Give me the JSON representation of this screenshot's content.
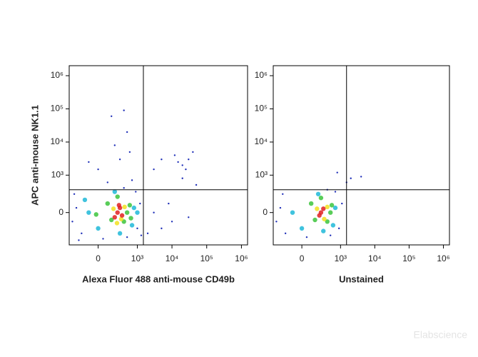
{
  "chart_data": [
    {
      "type": "scatter",
      "scale": "biexponential",
      "xlabel": "Alexa Fluor 488 anti-mouse CD49b",
      "ylabel": "APC anti-mouse NK1.1",
      "xlim": [
        -500,
        1500000
      ],
      "ylim": [
        -700,
        2000000
      ],
      "xticks": [
        0,
        {
          "value": 1000,
          "label": "10³"
        },
        {
          "value": 10000,
          "label": "10⁴"
        },
        {
          "value": 100000,
          "label": "10⁵"
        },
        {
          "value": 1000000,
          "label": "10⁶"
        }
      ],
      "yticks": [
        0,
        {
          "value": 1000,
          "label": "10³"
        },
        {
          "value": 10000,
          "label": "10⁴"
        },
        {
          "value": 100000,
          "label": "10⁵"
        },
        {
          "value": 1000000,
          "label": "10⁶"
        }
      ],
      "gate_x": 1500,
      "gate_y": 350,
      "series": [
        {
          "color": "#1f2fb8",
          "x": [
            -300,
            -200,
            1000,
            1200,
            -400,
            50,
            500,
            400,
            100,
            0,
            300,
            200,
            500,
            400,
            150,
            600,
            -100,
            20000,
            30000,
            25000,
            15000,
            40000,
            20000,
            10000,
            5000,
            3000,
            8000,
            2000,
            30000,
            50000,
            3000,
            5000,
            12000,
            -350,
            900,
            1300,
            700,
            -250
          ],
          "values": [
            50,
            -300,
            -200,
            100,
            -100,
            -450,
            -400,
            400,
            600,
            1500,
            3000,
            8000,
            20000,
            90000,
            60000,
            5000,
            2500,
            2000,
            3000,
            1500,
            2500,
            5000,
            800,
            -100,
            -200,
            0,
            100,
            -300,
            -50,
            500,
            1500,
            3000,
            4000,
            250,
            300,
            -350,
            700,
            -500
          ]
        },
        {
          "color": "#1fb8d8",
          "x": [
            -100,
            800,
            0,
            300,
            200,
            700,
            -150,
            1000
          ],
          "values": [
            0,
            50,
            -200,
            -300,
            300,
            -150,
            150,
            0
          ]
        },
        {
          "color": "#3cc43c",
          "x": [
            100,
            500,
            400,
            150,
            600,
            250,
            -20,
            650
          ],
          "values": [
            100,
            0,
            -100,
            -80,
            80,
            200,
            -20,
            -60
          ]
        },
        {
          "color": "#f2e020",
          "x": [
            180,
            420,
            330,
            240
          ],
          "values": [
            40,
            60,
            -70,
            -120
          ]
        },
        {
          "color": "#e02020",
          "x": [
            250,
            300,
            200,
            350,
            280
          ],
          "values": [
            0,
            50,
            -50,
            -30,
            80
          ]
        }
      ]
    },
    {
      "type": "scatter",
      "scale": "biexponential",
      "xlabel": "Unstained",
      "xlim": [
        -500,
        1500000
      ],
      "ylim": [
        -700,
        2000000
      ],
      "xticks": [
        0,
        {
          "value": 1000,
          "label": "10³"
        },
        {
          "value": 10000,
          "label": "10⁴"
        },
        {
          "value": 100000,
          "label": "10⁵"
        },
        {
          "value": 1000000,
          "label": "10⁶"
        }
      ],
      "yticks": [
        0,
        {
          "value": 1000,
          "label": "10³"
        },
        {
          "value": 10000,
          "label": "10⁴"
        },
        {
          "value": 100000,
          "label": "10⁵"
        },
        {
          "value": 1000000,
          "label": "10⁶"
        }
      ],
      "gate_x": 1500,
      "gate_y": 350,
      "series": [
        {
          "color": "#1f2fb8",
          "x": [
            -300,
            -200,
            900,
            1100,
            -400,
            50,
            500,
            400,
            2000,
            4000,
            800,
            1500,
            -250,
            700
          ],
          "values": [
            50,
            -300,
            -200,
            100,
            -100,
            -400,
            -350,
            350,
            800,
            900,
            1200,
            600,
            250,
            300
          ]
        },
        {
          "color": "#1fb8d8",
          "x": [
            -100,
            700,
            0,
            300,
            200,
            600
          ],
          "values": [
            0,
            50,
            -200,
            -250,
            250,
            -150
          ]
        },
        {
          "color": "#3cc43c",
          "x": [
            100,
            500,
            400,
            150,
            550,
            250
          ],
          "values": [
            100,
            0,
            -100,
            -80,
            80,
            180
          ]
        },
        {
          "color": "#f2e020",
          "x": [
            180,
            400,
            320
          ],
          "values": [
            40,
            60,
            -70
          ]
        },
        {
          "color": "#e02020",
          "x": [
            250,
            300,
            220
          ],
          "values": [
            0,
            40,
            -30
          ]
        }
      ]
    }
  ],
  "watermark": "Elabscience"
}
